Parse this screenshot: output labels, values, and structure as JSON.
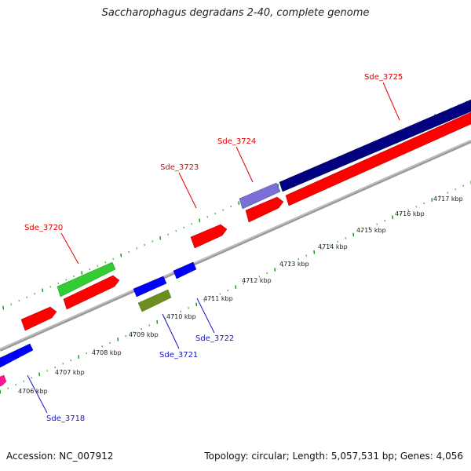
{
  "title": "Saccharophagus degradans 2-40, complete genome",
  "footer": {
    "accession": "Accession: NC_007912",
    "topology": "Topology: circular; Length: 5,057,531 bp; Genes: 4,056"
  },
  "scale_labels": [
    "4706 kbp",
    "4707 kbp",
    "4708 kbp",
    "4709 kbp",
    "4710 kbp",
    "4711 kbp",
    "4712 kbp",
    "4713 kbp",
    "4714 kbp",
    "4715 kbp",
    "4716 kbp",
    "4717 kbp"
  ],
  "gene_labels": {
    "top": [
      "Sde_3720",
      "Sde_3723",
      "Sde_3724",
      "Sde_3725"
    ],
    "bottom": [
      "Sde_3718",
      "Sde_3721",
      "Sde_3722"
    ]
  },
  "colors": {
    "red": "#ff0000",
    "green": "#33cc33",
    "blue": "#0000ff",
    "navy": "#000080",
    "lavender": "#7a6fd6",
    "olive": "#6b8e23",
    "magenta": "#ff1493",
    "backbone": "#9a9a9a",
    "tick": "#1a8c1a",
    "label_red": "#e00000",
    "label_blue": "#1515c8"
  }
}
